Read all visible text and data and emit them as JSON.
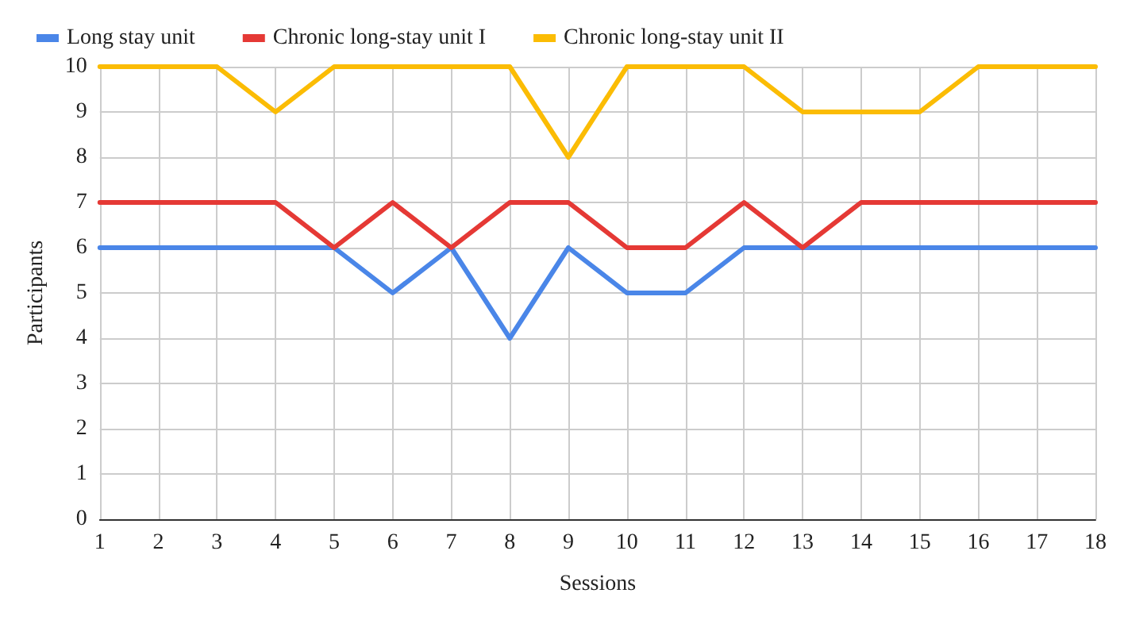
{
  "chart_data": {
    "type": "line",
    "xlabel": "Sessions",
    "ylabel": "Participants",
    "x": [
      1,
      2,
      3,
      4,
      5,
      6,
      7,
      8,
      9,
      10,
      11,
      12,
      13,
      14,
      15,
      16,
      17,
      18
    ],
    "series": [
      {
        "name": "Long stay unit",
        "color": "#4a86e8",
        "values": [
          6,
          6,
          6,
          6,
          6,
          5,
          6,
          4,
          6,
          5,
          5,
          6,
          6,
          6,
          6,
          6,
          6,
          6
        ]
      },
      {
        "name": "Chronic long-stay unit I",
        "color": "#e53935",
        "values": [
          7,
          7,
          7,
          7,
          6,
          7,
          6,
          7,
          7,
          6,
          6,
          7,
          6,
          7,
          7,
          7,
          7,
          7
        ]
      },
      {
        "name": "Chronic long-stay unit II",
        "color": "#fbbc04",
        "values": [
          10,
          10,
          10,
          9,
          10,
          10,
          10,
          10,
          8,
          10,
          10,
          10,
          9,
          9,
          9,
          10,
          10,
          10
        ]
      }
    ],
    "xlim": [
      1,
      18
    ],
    "xticks": [
      1,
      2,
      3,
      4,
      5,
      6,
      7,
      8,
      9,
      10,
      11,
      12,
      13,
      14,
      15,
      16,
      17,
      18
    ],
    "ylim": [
      0,
      10
    ],
    "yticks": [
      0,
      1,
      2,
      3,
      4,
      5,
      6,
      7,
      8,
      9,
      10
    ],
    "grid": true,
    "legend": "top left",
    "marker": "none",
    "line_style": "solid"
  }
}
